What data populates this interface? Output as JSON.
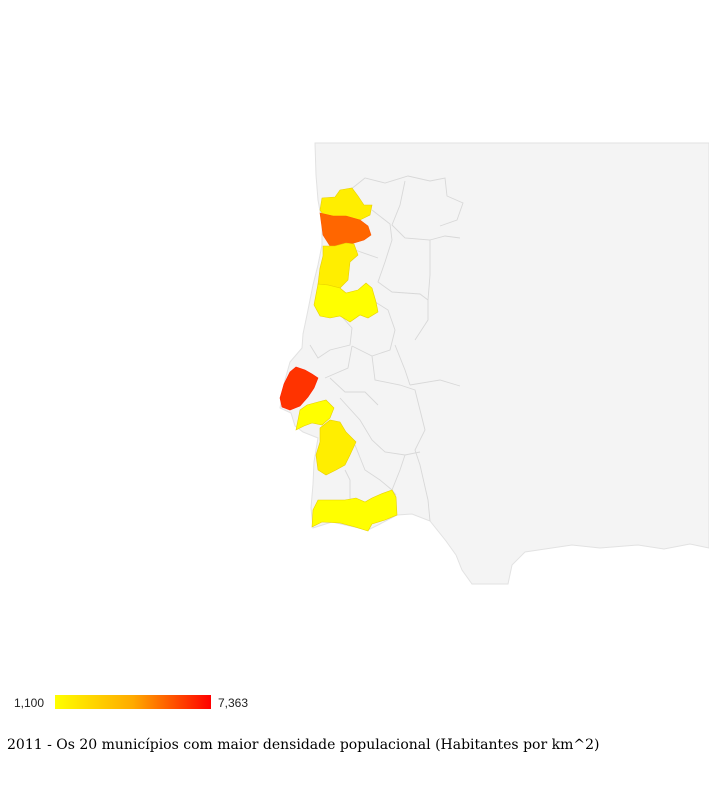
{
  "colors": {
    "land": "#f4f4f4",
    "border": "#d8d8d8",
    "low": "#ffff00",
    "mid": "#ffcc00",
    "high": "#ff6600",
    "max": "#ff3300"
  },
  "legend": {
    "min_label": "1,100",
    "max_label": "7,363",
    "min_value": 1100,
    "max_value": 7363,
    "gradient_start": "#ffff00",
    "gradient_end": "#ff0000"
  },
  "caption": "2011 - Os 20 municípios com maior densidade populacional (Habitantes por km^2)"
}
